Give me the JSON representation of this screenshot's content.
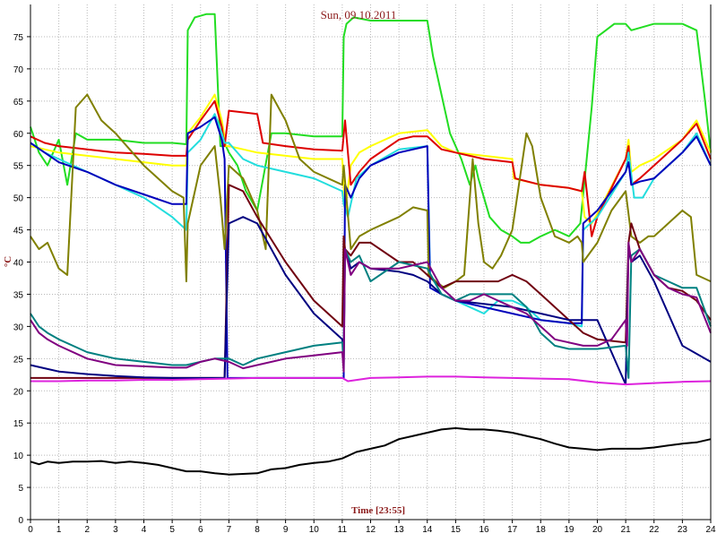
{
  "chart_data": {
    "type": "line",
    "title": "Sun, 09.10.2011",
    "xlabel": "Time [23:55]",
    "ylabel": "°C",
    "xlim": [
      0,
      24
    ],
    "ylim": [
      0,
      80
    ],
    "xticks": [
      0,
      1,
      2,
      3,
      4,
      5,
      6,
      7,
      8,
      9,
      10,
      11,
      12,
      13,
      14,
      15,
      16,
      17,
      18,
      19,
      20,
      21,
      22,
      23,
      24
    ],
    "yticks": [
      0,
      5,
      10,
      15,
      20,
      25,
      30,
      35,
      40,
      45,
      50,
      55,
      60,
      65,
      70,
      75
    ],
    "grid": true,
    "legend": "none",
    "background": "#ffffff",
    "grid_color": "#b8b8b8",
    "series": [
      {
        "color": "#22dd22",
        "x": [
          0,
          0.3,
          0.6,
          1.0,
          1.3,
          1.6,
          2.0,
          2.5,
          3.0,
          4.0,
          5.0,
          5.5,
          5.55,
          5.8,
          6.2,
          6.5,
          6.7,
          6.9,
          7.0,
          7.3,
          7.6,
          8.0,
          8.5,
          9.0,
          10.0,
          11.0,
          11.05,
          11.15,
          11.4,
          12.0,
          13.0,
          14.0,
          14.2,
          14.5,
          14.8,
          15.2,
          15.5,
          15.7,
          15.8,
          16.2,
          16.6,
          17.0,
          17.3,
          17.6,
          18.0,
          18.5,
          19.0,
          19.4,
          19.6,
          19.8,
          20.0,
          20.3,
          20.6,
          21.0,
          21.2,
          21.6,
          22.0,
          22.5,
          23.0,
          23.5,
          23.8,
          24.0
        ],
        "y": [
          61,
          57,
          55,
          59,
          52,
          60,
          59,
          59,
          59,
          58.5,
          58.5,
          58.3,
          76,
          78,
          78.5,
          78.5,
          58,
          58,
          57,
          55,
          51,
          48,
          60,
          60,
          59.5,
          59.5,
          75,
          77,
          78,
          77.5,
          77.5,
          77.5,
          72,
          66,
          60,
          56,
          52,
          55,
          53,
          47,
          45,
          44,
          43,
          43,
          44,
          45,
          44,
          46,
          55,
          64,
          75,
          76,
          77,
          77,
          76,
          76.5,
          77,
          77,
          77,
          76,
          65,
          57
        ]
      },
      {
        "color": "#ffff00",
        "x": [
          0,
          0.5,
          1.0,
          2.0,
          3.0,
          4.0,
          5.0,
          5.5,
          5.55,
          6.0,
          6.5,
          6.75,
          6.9,
          7.0,
          7.5,
          8.0,
          9.0,
          10.0,
          11.0,
          11.1,
          11.3,
          11.6,
          12.0,
          13.0,
          14.0,
          14.5,
          15.0,
          16.0,
          17.0,
          17.05,
          18.0,
          19.0,
          19.45,
          19.55,
          19.8,
          20.0,
          21.0,
          21.1,
          21.2,
          21.5,
          22.0,
          23.0,
          23.5,
          24.0
        ],
        "y": [
          58,
          57.5,
          57,
          56.5,
          56,
          55.5,
          55,
          55,
          60,
          62.5,
          66,
          62,
          58,
          58,
          57.5,
          57,
          56.5,
          56,
          56,
          48,
          55,
          57,
          58,
          60,
          60.5,
          58,
          57,
          56.5,
          56,
          53,
          52,
          51.5,
          51,
          47,
          46,
          47.5,
          56,
          59,
          54,
          55,
          56,
          59,
          62,
          57
        ]
      },
      {
        "color": "#dd0000",
        "x": [
          0,
          0.5,
          1.0,
          2.0,
          3.0,
          4.0,
          5.0,
          5.5,
          5.55,
          6.0,
          6.5,
          6.75,
          6.85,
          7.0,
          8.0,
          8.2,
          9.0,
          10.0,
          11.0,
          11.1,
          11.3,
          11.6,
          12.0,
          13.0,
          13.5,
          14.0,
          14.5,
          15.0,
          16.0,
          17.0,
          17.1,
          18.0,
          19.0,
          19.45,
          19.55,
          19.8,
          20.0,
          21.0,
          21.1,
          21.2,
          21.5,
          22.0,
          23.0,
          23.5,
          24.0
        ],
        "y": [
          59.5,
          58.5,
          58,
          57.5,
          57,
          56.8,
          56.5,
          56.5,
          59,
          62,
          65,
          61,
          58,
          63.5,
          63,
          58.5,
          58,
          57.5,
          57.3,
          62,
          52,
          54,
          56,
          59,
          59.5,
          59.5,
          57.5,
          57,
          56,
          55.5,
          53,
          52,
          51.5,
          51,
          54,
          44,
          47,
          56,
          58,
          52,
          53,
          55,
          59,
          61.5,
          56
        ]
      },
      {
        "color": "#22dddd",
        "x": [
          0,
          0.5,
          1.0,
          2.0,
          3.0,
          4.0,
          5.0,
          5.5,
          5.55,
          6.0,
          6.5,
          6.75,
          6.85,
          7.0,
          7.5,
          8.0,
          9.0,
          10.0,
          11.0,
          11.05,
          11.2,
          11.5,
          12.0,
          13.0,
          14.0,
          14.1,
          14.5,
          15.0,
          15.5,
          16.0,
          16.5,
          17.0,
          17.5,
          18.0,
          19.0,
          19.45,
          19.5,
          20.0,
          21.0,
          21.1,
          21.3,
          21.6,
          22.0,
          23.0,
          23.5,
          24.0
        ],
        "y": [
          58.5,
          57,
          56,
          54,
          52,
          50,
          47,
          45,
          57,
          59,
          63,
          60,
          58.5,
          58.5,
          56,
          55,
          54,
          53,
          51,
          49,
          47,
          53,
          55,
          57.5,
          58,
          38,
          35,
          34,
          33,
          32,
          34,
          34,
          33,
          31,
          30.5,
          30,
          45,
          47,
          54,
          57,
          50,
          50,
          53,
          57,
          60,
          55
        ]
      },
      {
        "color": "#0000bb",
        "x": [
          0,
          0.5,
          1.0,
          2.0,
          3.0,
          4.0,
          5.0,
          5.5,
          5.55,
          6.0,
          6.5,
          6.75,
          6.85,
          6.95,
          7.0,
          8.0,
          9.0,
          10.0,
          11.0,
          11.05,
          11.1,
          11.3,
          11.6,
          12.0,
          13.0,
          14.0,
          14.1,
          14.5,
          15.0,
          16.0,
          17.0,
          18.0,
          19.0,
          19.45,
          19.5,
          20.0,
          21.0,
          21.1,
          21.2,
          21.5,
          22.0,
          23.0,
          23.5,
          24.0
        ],
        "y": [
          58.5,
          57,
          55.5,
          54,
          52,
          50.5,
          49,
          49,
          60,
          61,
          62.5,
          59,
          56,
          22,
          22,
          22,
          22,
          22,
          22,
          22,
          52,
          50,
          53,
          55,
          57,
          58,
          36,
          35,
          34,
          33,
          32,
          31,
          30.5,
          30.5,
          46,
          48,
          54,
          55.5,
          52,
          52.5,
          53,
          57,
          59.5,
          55
        ]
      },
      {
        "color": "#808000",
        "x": [
          0,
          0.3,
          0.6,
          1.0,
          1.3,
          1.6,
          2.0,
          2.5,
          3.0,
          4.0,
          5.0,
          5.4,
          5.5,
          5.55,
          6.0,
          6.5,
          6.7,
          6.85,
          7.0,
          7.5,
          8.0,
          8.3,
          8.5,
          9.0,
          9.5,
          10.0,
          11.0,
          11.05,
          11.3,
          11.6,
          12.0,
          13.0,
          13.5,
          14.0,
          14.05,
          14.3,
          14.6,
          15.0,
          15.3,
          15.6,
          15.8,
          16.0,
          16.3,
          16.6,
          17.0,
          17.5,
          17.7,
          18.0,
          18.5,
          19.0,
          19.3,
          19.45,
          19.5,
          20.0,
          20.5,
          21.0,
          21.2,
          21.5,
          21.8,
          22.0,
          22.5,
          23.0,
          23.3,
          23.5,
          24.0
        ],
        "y": [
          44,
          42,
          43,
          39,
          38,
          64,
          66,
          62,
          60,
          55,
          51,
          50,
          37,
          46,
          55,
          58,
          50,
          42,
          55,
          53,
          48,
          42,
          66,
          62,
          56,
          54,
          52,
          55,
          42,
          44,
          45,
          47,
          48.5,
          48,
          38,
          37,
          36,
          37,
          38,
          56,
          46,
          40,
          39,
          41,
          45,
          60,
          58,
          50,
          44,
          43,
          44,
          43,
          40,
          43,
          48,
          51,
          44,
          43,
          44,
          44,
          46,
          48,
          47,
          38,
          37
        ]
      },
      {
        "color": "#700010",
        "x": [
          0,
          5.5,
          6.0,
          6.8,
          6.85,
          7.0,
          7.5,
          8.0,
          9.0,
          10.0,
          11.0,
          11.05,
          11.1,
          11.3,
          11.6,
          12.0,
          13.0,
          13.5,
          14.0,
          14.5,
          15.0,
          15.5,
          16.0,
          16.5,
          17.0,
          17.5,
          18.0,
          19.0,
          19.5,
          20.0,
          21.0,
          21.1,
          21.2,
          21.5,
          22.0,
          22.5,
          23.0,
          23.5,
          24.0
        ],
        "y": [
          22,
          22,
          22,
          22,
          22,
          52,
          51,
          47,
          40,
          34,
          30,
          44,
          42,
          41,
          43,
          43,
          40,
          40,
          38,
          36,
          37,
          37,
          37,
          37,
          38,
          37,
          35,
          31,
          29,
          28,
          27.5,
          43,
          46,
          42,
          38,
          36,
          35.5,
          34,
          31
        ]
      },
      {
        "color": "#000080",
        "x": [
          0,
          0.5,
          1.0,
          2.0,
          3.0,
          4.0,
          5.0,
          6.0,
          6.85,
          7.0,
          7.5,
          8.0,
          9.0,
          10.0,
          11.0,
          11.05,
          11.1,
          11.3,
          11.6,
          12.0,
          13.0,
          13.5,
          14.0,
          14.5,
          15.0,
          16.0,
          17.0,
          18.0,
          19.0,
          20.0,
          21.0,
          21.1,
          21.2,
          21.5,
          22.0,
          23.0,
          24.0
        ],
        "y": [
          24,
          23.5,
          23,
          22.6,
          22.3,
          22.1,
          22,
          22,
          22,
          46,
          47,
          46,
          38,
          32,
          28,
          26,
          42,
          39,
          40,
          39,
          38.5,
          38,
          37,
          35,
          34,
          33.5,
          33,
          32,
          31,
          31,
          21,
          42,
          40,
          41,
          37,
          27,
          24.5
        ]
      },
      {
        "color": "#008080",
        "x": [
          0,
          0.3,
          0.6,
          1.0,
          2.0,
          3.0,
          4.0,
          5.0,
          5.5,
          6.0,
          6.5,
          7.0,
          7.5,
          8.0,
          9.0,
          10.0,
          11.0,
          11.05,
          11.1,
          11.3,
          11.6,
          12.0,
          13.0,
          14.0,
          14.5,
          15.0,
          15.5,
          16.0,
          16.5,
          17.0,
          17.5,
          18.0,
          18.5,
          19.0,
          19.5,
          20.0,
          21.0,
          21.1,
          21.2,
          21.5,
          22.0,
          22.5,
          23.0,
          23.5,
          24.0
        ],
        "y": [
          32,
          30,
          29,
          28,
          26,
          25,
          24.5,
          24,
          24,
          24.5,
          25,
          25,
          24,
          25,
          26,
          27,
          27.5,
          24,
          42,
          40,
          41,
          37,
          40,
          39,
          35,
          34,
          35,
          35,
          35,
          35,
          33,
          29,
          27,
          26.5,
          26.5,
          26.5,
          27,
          22,
          41,
          42,
          38,
          37,
          36,
          36,
          30
        ]
      },
      {
        "color": "#800080",
        "x": [
          0,
          0.3,
          0.6,
          1.0,
          2.0,
          3.0,
          4.0,
          5.0,
          5.5,
          6.0,
          6.5,
          7.0,
          7.5,
          8.0,
          9.0,
          10.0,
          11.0,
          11.05,
          11.1,
          11.3,
          11.6,
          12.0,
          13.0,
          14.0,
          14.5,
          15.0,
          15.5,
          16.0,
          16.5,
          17.0,
          17.5,
          18.0,
          18.5,
          19.0,
          19.5,
          20.0,
          20.5,
          21.0,
          21.05,
          21.1,
          21.2,
          21.5,
          22.0,
          22.5,
          23.0,
          23.5,
          24.0
        ],
        "y": [
          31,
          29,
          28,
          27,
          25,
          24,
          23.8,
          23.6,
          23.6,
          24.5,
          25,
          24.5,
          23.5,
          24,
          25,
          25.5,
          26,
          23,
          42,
          38,
          40,
          39,
          39,
          40,
          36,
          34,
          34,
          35,
          34,
          33,
          32,
          30,
          28,
          27.5,
          27,
          27,
          28,
          31,
          27,
          43,
          40,
          42,
          38,
          36,
          35,
          34.5,
          29
        ]
      },
      {
        "color": "#dd22dd",
        "x": [
          0,
          1,
          2,
          3,
          4,
          5,
          6,
          7,
          8,
          9,
          10,
          11,
          11.2,
          12,
          13,
          14,
          15,
          16,
          17,
          18,
          19,
          20,
          21,
          22,
          23,
          24
        ],
        "y": [
          21.5,
          21.5,
          21.6,
          21.6,
          21.7,
          21.7,
          21.8,
          21.9,
          22,
          22,
          22,
          22,
          21.5,
          22,
          22.1,
          22.2,
          22.2,
          22.1,
          22,
          21.9,
          21.8,
          21.3,
          21,
          21.2,
          21.4,
          21.5
        ]
      },
      {
        "color": "#000000",
        "x": [
          0,
          0.3,
          0.6,
          1.0,
          1.5,
          2.0,
          2.5,
          3.0,
          3.5,
          4.0,
          4.5,
          5.0,
          5.5,
          6.0,
          6.5,
          7.0,
          7.5,
          8.0,
          8.5,
          9.0,
          9.5,
          10.0,
          10.5,
          11.0,
          11.5,
          12.0,
          12.5,
          13.0,
          13.5,
          14.0,
          14.5,
          15.0,
          15.5,
          16.0,
          16.5,
          17.0,
          17.5,
          18.0,
          18.5,
          19.0,
          19.5,
          20.0,
          20.5,
          21.0,
          21.5,
          22.0,
          22.5,
          23.0,
          23.5,
          24.0
        ],
        "y": [
          9,
          8.6,
          9,
          8.8,
          9,
          9,
          9.1,
          8.8,
          9,
          8.8,
          8.5,
          8,
          7.5,
          7.5,
          7.2,
          7,
          7.1,
          7.2,
          7.8,
          8,
          8.5,
          8.8,
          9,
          9.5,
          10.5,
          11,
          11.5,
          12.5,
          13,
          13.5,
          14,
          14.2,
          14,
          14,
          13.8,
          13.5,
          13,
          12.5,
          11.8,
          11.2,
          11,
          10.8,
          11,
          11,
          11,
          11.2,
          11.5,
          11.8,
          12,
          12.5
        ]
      }
    ]
  }
}
